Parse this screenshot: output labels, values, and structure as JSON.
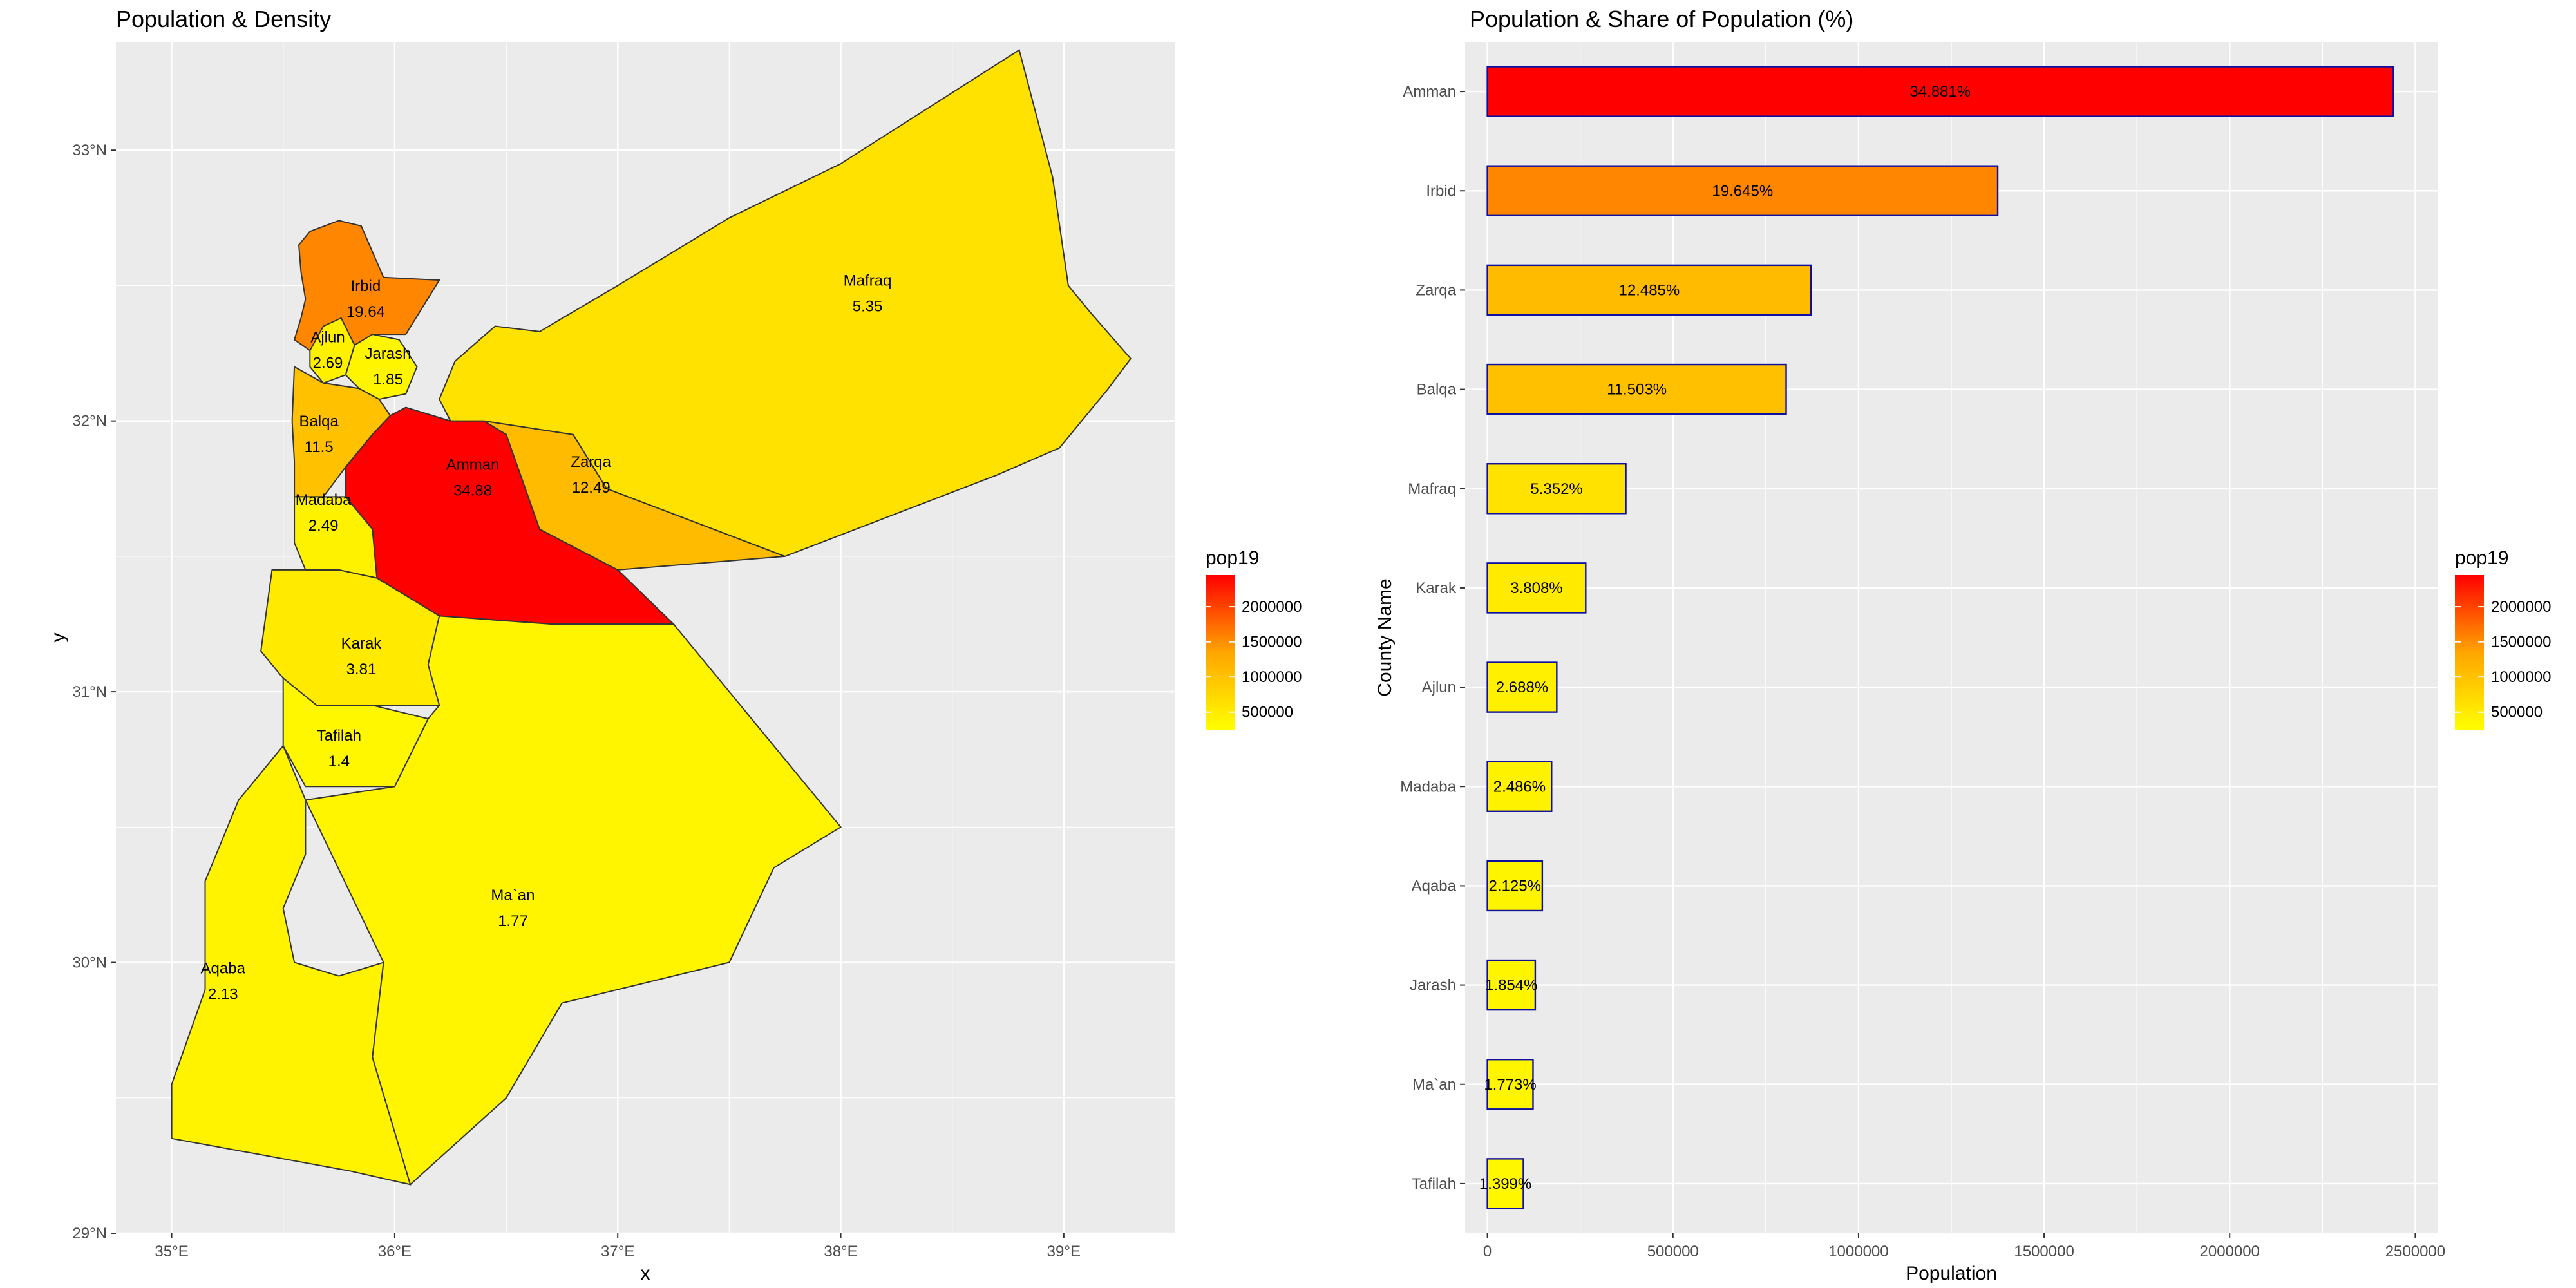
{
  "chart_data": [
    {
      "type": "map",
      "title": "Population & Density",
      "xlabel": "x",
      "ylabel": "y",
      "x_ticks": [
        "35°E",
        "36°E",
        "37°E",
        "38°E",
        "39°E"
      ],
      "y_ticks": [
        "29°N",
        "30°N",
        "31°N",
        "32°N",
        "33°N"
      ],
      "xlim": [
        34.75,
        39.5
      ],
      "ylim": [
        29.0,
        33.4
      ],
      "legend": {
        "title": "pop19",
        "ticks": [
          "500000",
          "1000000",
          "1500000",
          "2000000"
        ],
        "placement": "right",
        "low_color": "#FFFF00",
        "high_color": "#FF0000"
      },
      "regions": [
        {
          "name": "Amman",
          "value": "34.88",
          "pop19": 2430000
        },
        {
          "name": "Irbid",
          "value": "19.64",
          "pop19": 1370000
        },
        {
          "name": "Zarqa",
          "value": "12.49",
          "pop19": 870000
        },
        {
          "name": "Balqa",
          "value": "11.5",
          "pop19": 800000
        },
        {
          "name": "Mafraq",
          "value": "5.35",
          "pop19": 373000
        },
        {
          "name": "Karak",
          "value": "3.81",
          "pop19": 265000
        },
        {
          "name": "Ajlun",
          "value": "2.69",
          "pop19": 187000
        },
        {
          "name": "Madaba",
          "value": "2.49",
          "pop19": 173000
        },
        {
          "name": "Aqaba",
          "value": "2.13",
          "pop19": 148000
        },
        {
          "name": "Jarash",
          "value": "1.85",
          "pop19": 129000
        },
        {
          "name": "Ma`an",
          "value": "1.77",
          "pop19": 123000
        },
        {
          "name": "Tafilah",
          "value": "1.4",
          "pop19": 97000
        }
      ]
    },
    {
      "type": "bar",
      "orientation": "horizontal",
      "title": "Population & Share of Population (%)",
      "xlabel": "Population",
      "ylabel": "County Name",
      "xlim": [
        -60000,
        2560000
      ],
      "x_ticks": [
        0,
        500000,
        1000000,
        1500000,
        2000000,
        2500000
      ],
      "categories": [
        "Amman",
        "Irbid",
        "Zarqa",
        "Balqa",
        "Mafraq",
        "Karak",
        "Ajlun",
        "Madaba",
        "Aqaba",
        "Jarash",
        "Ma`an",
        "Tafilah"
      ],
      "values": [
        2440000,
        1375000,
        872000,
        805000,
        373000,
        265000,
        187000,
        173000,
        148000,
        129000,
        123000,
        97000
      ],
      "labels": [
        "34.881%",
        "19.645%",
        "12.485%",
        "11.503%",
        "5.352%",
        "3.808%",
        "2.688%",
        "2.486%",
        "2.125%",
        "1.854%",
        "1.773%",
        "1.399%"
      ],
      "bar_outline": "#1010a0",
      "legend": {
        "title": "pop19",
        "ticks": [
          "500000",
          "1000000",
          "1500000",
          "2000000"
        ],
        "placement": "right"
      },
      "grid": true
    }
  ],
  "colors": {
    "panel_bg": "#EBEBEB",
    "grid": "#FFFFFF",
    "low": "#FFFF00",
    "high": "#FF0000"
  }
}
